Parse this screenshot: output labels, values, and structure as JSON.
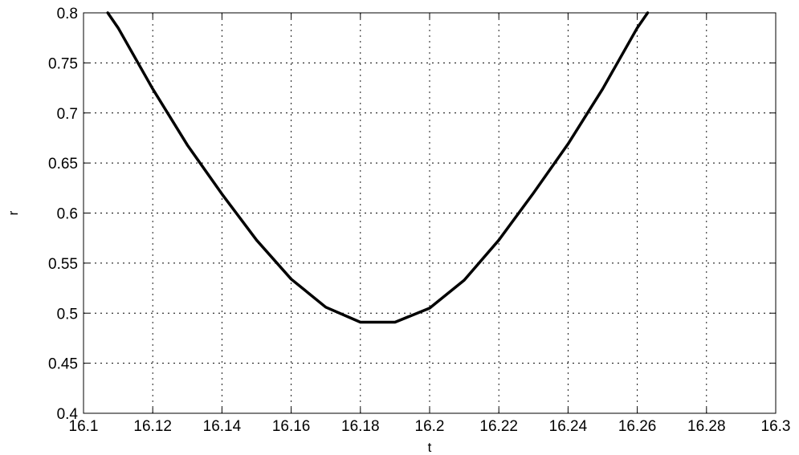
{
  "chart_data": {
    "type": "line",
    "title": "",
    "xlabel": "t",
    "ylabel": "r",
    "xlim": [
      16.1,
      16.3
    ],
    "ylim": [
      0.4,
      0.8
    ],
    "grid": true,
    "xticks": [
      16.1,
      16.12,
      16.14,
      16.16,
      16.18,
      16.2,
      16.22,
      16.24,
      16.26,
      16.28,
      16.3
    ],
    "xtick_labels": [
      "16.1",
      "16.12",
      "16.14",
      "16.16",
      "16.18",
      "16.2",
      "16.22",
      "16.24",
      "16.26",
      "16.28",
      "16.3"
    ],
    "yticks": [
      0.4,
      0.45,
      0.5,
      0.55,
      0.6,
      0.65,
      0.7,
      0.75,
      0.8
    ],
    "ytick_labels": [
      "0.4",
      "0.45",
      "0.5",
      "0.55",
      "0.6",
      "0.65",
      "0.7",
      "0.75",
      "0.8"
    ],
    "series": [
      {
        "color": "#000000",
        "x": [
          16.107,
          16.11,
          16.12,
          16.13,
          16.14,
          16.15,
          16.16,
          16.17,
          16.18,
          16.19,
          16.2,
          16.21,
          16.22,
          16.23,
          16.24,
          16.25,
          16.26,
          16.263
        ],
        "y": [
          0.8,
          0.785,
          0.724,
          0.668,
          0.619,
          0.573,
          0.534,
          0.506,
          0.491,
          0.491,
          0.505,
          0.533,
          0.573,
          0.62,
          0.669,
          0.724,
          0.785,
          0.8
        ]
      }
    ]
  }
}
